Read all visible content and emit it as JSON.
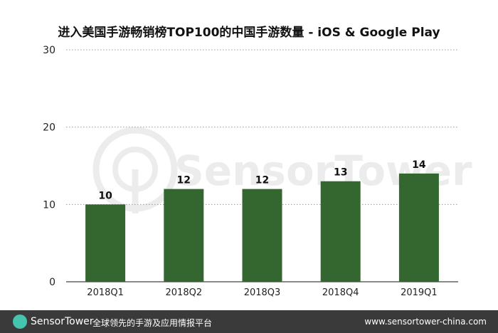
{
  "chart_data": {
    "type": "bar",
    "title": "进入美国手游畅销榜TOP100的中国手游数量 - iOS & Google Play",
    "categories": [
      "2018Q1",
      "2018Q2",
      "2018Q3",
      "2018Q4",
      "2019Q1"
    ],
    "values": [
      10,
      12,
      12,
      13,
      14
    ],
    "ylim": [
      0,
      30
    ],
    "yticks": [
      0,
      10,
      20,
      30
    ],
    "grid": true,
    "xlabel": "",
    "ylabel": "",
    "color": "#346630"
  },
  "watermark": "SensorTower",
  "footer": {
    "brand": "SensorTower",
    "tagline": "全球领先的手游及应用情报平台",
    "website": "www.sensortower-china.com"
  }
}
